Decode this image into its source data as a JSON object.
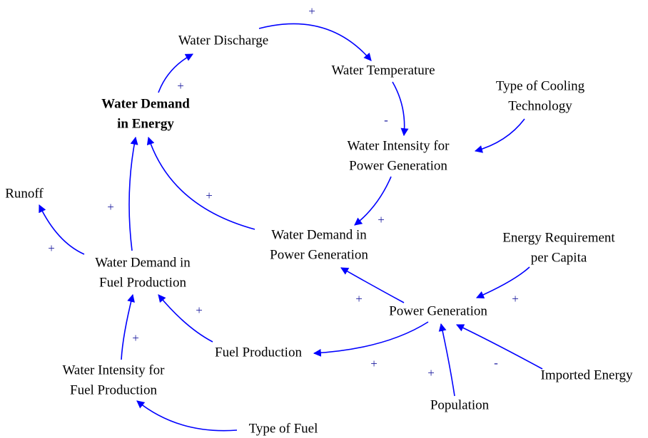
{
  "nodes": [
    {
      "lines": [
        "Water Discharge"
      ]
    },
    {
      "lines": [
        "Water Temperature"
      ]
    },
    {
      "lines": [
        "Type of Cooling",
        "Technology"
      ]
    },
    {
      "lines": [
        "Water Demand",
        "in Energy"
      ]
    },
    {
      "lines": [
        "Water Intensity for",
        "Power Generation"
      ]
    },
    {
      "lines": [
        "Runoff"
      ]
    },
    {
      "lines": [
        "Water Demand in",
        "Power Generation"
      ]
    },
    {
      "lines": [
        "Energy Requirement",
        "per Capita"
      ]
    },
    {
      "lines": [
        "Water Demand in",
        "Fuel Production"
      ]
    },
    {
      "lines": [
        "Power Generation"
      ]
    },
    {
      "lines": [
        "Fuel Production"
      ]
    },
    {
      "lines": [
        "Water Intensity for",
        "Fuel Production"
      ]
    },
    {
      "lines": [
        "Imported Energy"
      ]
    },
    {
      "lines": [
        "Population"
      ]
    },
    {
      "lines": [
        "Type of Fuel"
      ]
    }
  ],
  "links": [
    {
      "sign": "+"
    },
    {
      "sign": "+"
    },
    {
      "sign": "-"
    },
    {
      "sign": "+"
    },
    {
      "sign": "+"
    },
    {
      "sign": "+"
    },
    {
      "sign": "+"
    },
    {
      "sign": "+"
    },
    {
      "sign": "+"
    },
    {
      "sign": "+"
    },
    {
      "sign": "+"
    },
    {
      "sign": "+"
    },
    {
      "sign": "+"
    },
    {
      "sign": "-"
    }
  ]
}
